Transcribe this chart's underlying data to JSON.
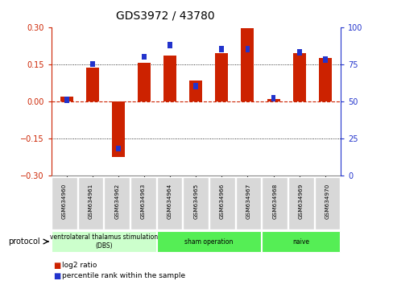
{
  "title": "GDS3972 / 43780",
  "samples": [
    "GSM634960",
    "GSM634961",
    "GSM634962",
    "GSM634963",
    "GSM634964",
    "GSM634965",
    "GSM634966",
    "GSM634967",
    "GSM634968",
    "GSM634969",
    "GSM634970"
  ],
  "log2_ratio": [
    0.02,
    0.135,
    -0.225,
    0.155,
    0.185,
    0.085,
    0.195,
    0.295,
    0.01,
    0.195,
    0.175
  ],
  "percentile_rank": [
    51,
    75,
    18,
    80,
    88,
    60,
    85,
    85,
    52,
    83,
    78
  ],
  "ylim_left": [
    -0.3,
    0.3
  ],
  "ylim_right": [
    0,
    100
  ],
  "yticks_left": [
    -0.3,
    -0.15,
    0,
    0.15,
    0.3
  ],
  "yticks_right": [
    0,
    25,
    50,
    75,
    100
  ],
  "bar_color": "#cc2200",
  "dot_color": "#2233cc",
  "zero_line_color": "#cc2200",
  "protocol_groups": [
    {
      "label": "ventrolateral thalamus stimulation\n(DBS)",
      "start": 0,
      "end": 3,
      "color": "#ccffcc"
    },
    {
      "label": "sham operation",
      "start": 4,
      "end": 7,
      "color": "#55ee55"
    },
    {
      "label": "naive",
      "start": 8,
      "end": 10,
      "color": "#55ee55"
    }
  ],
  "legend_items": [
    {
      "label": "log2 ratio",
      "color": "#cc2200"
    },
    {
      "label": "percentile rank within the sample",
      "color": "#2233cc"
    }
  ],
  "bg_color": "#ffffff",
  "protocol_label": "protocol",
  "title_fontsize": 10,
  "bar_width": 0.5,
  "dot_size": 0.025
}
